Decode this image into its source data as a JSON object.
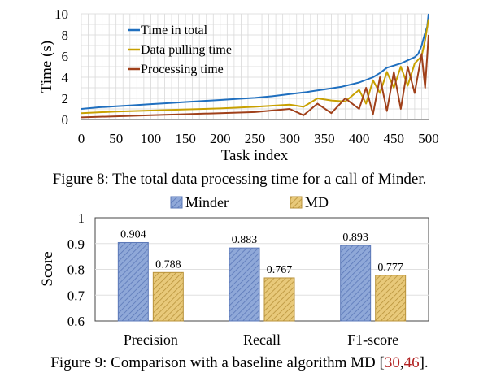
{
  "figure8": {
    "caption": "Figure 8: The total data processing time for a call of Minder.",
    "chart_data": {
      "type": "line",
      "xlabel": "Task index",
      "ylabel": "Time (s)",
      "xlim": [
        0,
        500
      ],
      "ylim": [
        0,
        10
      ],
      "xticks": [
        0,
        50,
        100,
        150,
        200,
        250,
        300,
        350,
        400,
        450,
        500
      ],
      "yticks": [
        0,
        2,
        4,
        6,
        8,
        10
      ],
      "grid": true,
      "legend": "top-left",
      "series": [
        {
          "name": "Time in total",
          "color": "#1f6fbf",
          "x": [
            0,
            25,
            50,
            75,
            100,
            125,
            150,
            175,
            200,
            225,
            250,
            275,
            300,
            325,
            350,
            375,
            400,
            410,
            420,
            430,
            440,
            450,
            460,
            470,
            480,
            485,
            490,
            495,
            498,
            500
          ],
          "y": [
            1.0,
            1.15,
            1.25,
            1.35,
            1.45,
            1.55,
            1.65,
            1.75,
            1.85,
            1.95,
            2.05,
            2.2,
            2.4,
            2.6,
            2.85,
            3.1,
            3.5,
            3.75,
            4.0,
            4.4,
            4.9,
            5.1,
            5.3,
            5.6,
            5.9,
            6.2,
            7.0,
            8.2,
            8.8,
            10.0
          ]
        },
        {
          "name": "Data pulling time",
          "color": "#c8a000",
          "x": [
            0,
            50,
            100,
            150,
            200,
            250,
            300,
            320,
            340,
            360,
            380,
            400,
            410,
            420,
            430,
            440,
            450,
            460,
            470,
            480,
            490,
            495,
            500
          ],
          "y": [
            0.6,
            0.75,
            0.85,
            0.95,
            1.05,
            1.2,
            1.4,
            1.2,
            2.0,
            1.8,
            1.7,
            2.8,
            1.5,
            3.7,
            2.5,
            4.5,
            3.0,
            5.0,
            3.2,
            5.3,
            6.0,
            7.5,
            9.5
          ]
        },
        {
          "name": "Processing time",
          "color": "#a0401a",
          "x": [
            0,
            50,
            100,
            150,
            200,
            250,
            300,
            320,
            340,
            360,
            380,
            400,
            410,
            420,
            430,
            440,
            450,
            460,
            470,
            480,
            490,
            495,
            500
          ],
          "y": [
            0.2,
            0.3,
            0.4,
            0.5,
            0.6,
            0.7,
            1.0,
            0.4,
            1.5,
            0.6,
            2.0,
            1.0,
            3.0,
            0.5,
            4.0,
            0.8,
            4.5,
            1.0,
            5.0,
            2.5,
            6.2,
            3.0,
            8.0
          ]
        }
      ]
    }
  },
  "figure9": {
    "caption_text": "Figure 9: Comparison with a baseline algorithm MD [",
    "cite1": "30",
    "cite_sep": ",",
    "cite2": "46",
    "caption_end": "].",
    "chart_data": {
      "type": "bar",
      "ylabel": "Score",
      "categories": [
        "Precision",
        "Recall",
        "F1-score"
      ],
      "ylim": [
        0.6,
        1.0
      ],
      "yticks": [
        "0.6",
        "0.7",
        "0.8",
        "0.9",
        "1"
      ],
      "legend": "top",
      "series": [
        {
          "name": "Minder",
          "color": "#8fa8d8",
          "values": [
            0.904,
            0.883,
            0.893
          ],
          "labels": [
            "0.904",
            "0.883",
            "0.893"
          ]
        },
        {
          "name": "MD",
          "color": "#e8c97a",
          "values": [
            0.788,
            0.767,
            0.777
          ],
          "labels": [
            "0.788",
            "0.767",
            "0.777"
          ]
        }
      ]
    }
  }
}
